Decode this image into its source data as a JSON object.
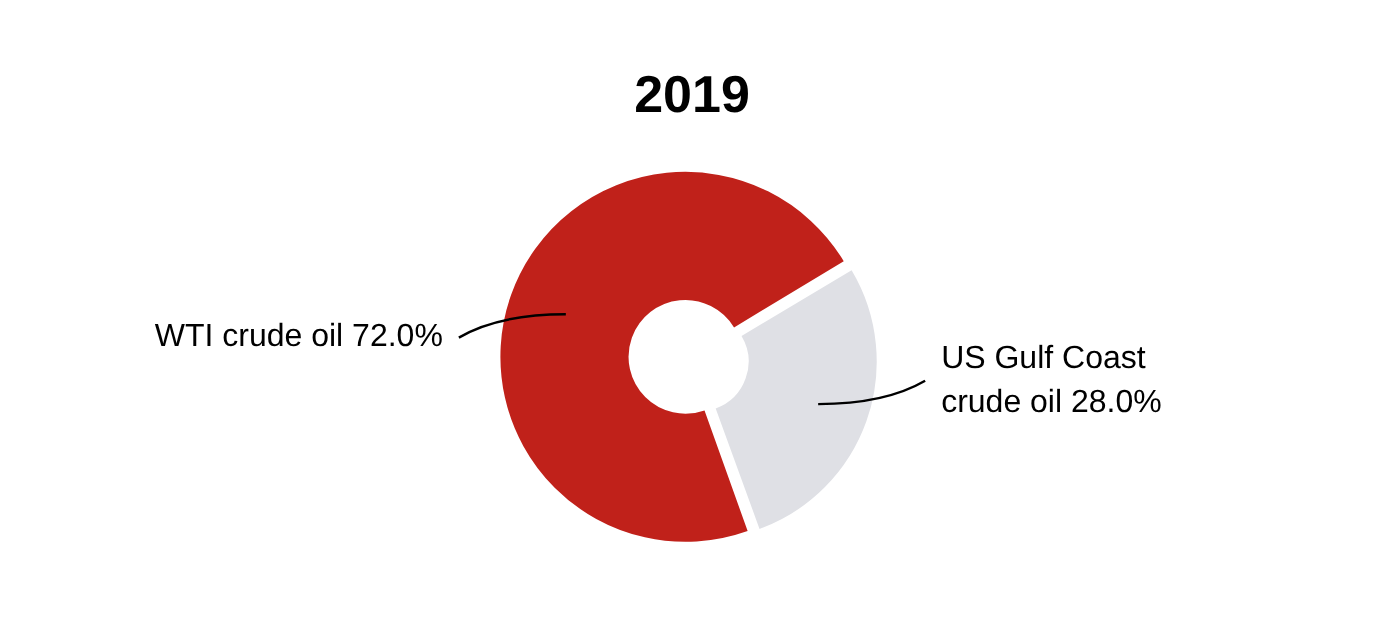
{
  "chart_data": {
    "type": "donut",
    "title": "2019",
    "categories": [
      "WTI crude oil",
      "US Gulf Coast crude oil"
    ],
    "values": [
      72.0,
      28.0
    ],
    "value_labels": [
      "72.0%",
      "28.0%"
    ],
    "colors": [
      "#c0211a",
      "#dfe0e5"
    ],
    "legend": false
  }
}
